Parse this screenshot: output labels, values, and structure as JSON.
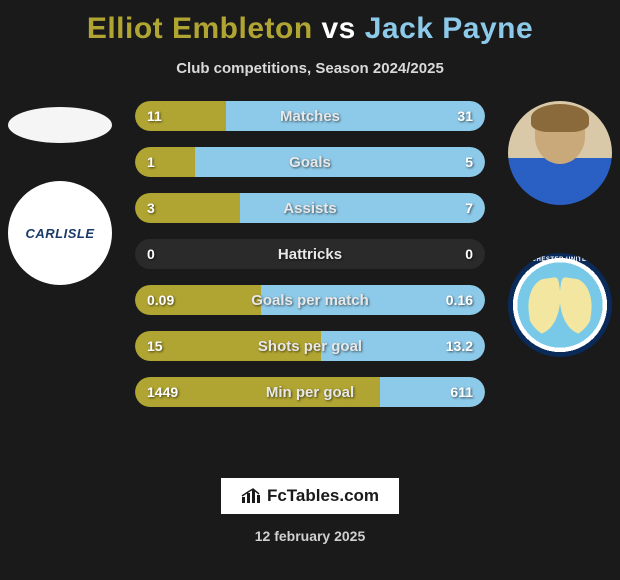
{
  "title": {
    "player1": "Elliot Embleton",
    "vs": "vs",
    "player2": "Jack Payne"
  },
  "subtitle": "Club competitions, Season 2024/2025",
  "colors": {
    "player1": "#b0a432",
    "player2": "#8dc9e8",
    "bar_bg": "#2a2a2a",
    "page_bg": "#1a1a1a",
    "bar_text": "#e8e8e8",
    "val_text": "#ffffff"
  },
  "bar_style": {
    "height": 30,
    "gap": 16,
    "radius": 15,
    "label_fontsize": 15,
    "val_fontsize": 14
  },
  "stats": [
    {
      "label": "Matches",
      "left_val": "11",
      "right_val": "31",
      "left_pct": 26,
      "right_pct": 74
    },
    {
      "label": "Goals",
      "left_val": "1",
      "right_val": "5",
      "left_pct": 17,
      "right_pct": 83
    },
    {
      "label": "Assists",
      "left_val": "3",
      "right_val": "7",
      "left_pct": 30,
      "right_pct": 70
    },
    {
      "label": "Hattricks",
      "left_val": "0",
      "right_val": "0",
      "left_pct": 0,
      "right_pct": 0
    },
    {
      "label": "Goals per match",
      "left_val": "0.09",
      "right_val": "0.16",
      "left_pct": 36,
      "right_pct": 64
    },
    {
      "label": "Shots per goal",
      "left_val": "15",
      "right_val": "13.2",
      "left_pct": 53,
      "right_pct": 47
    },
    {
      "label": "Min per goal",
      "left_val": "1449",
      "right_val": "611",
      "left_pct": 70,
      "right_pct": 30
    }
  ],
  "avatars": {
    "left_club_text": "CARLISLE",
    "right_club_ring_text": "COLCHESTER UNITED FC"
  },
  "footer": {
    "logo_text": "FcTables.com",
    "date": "12 february 2025"
  }
}
